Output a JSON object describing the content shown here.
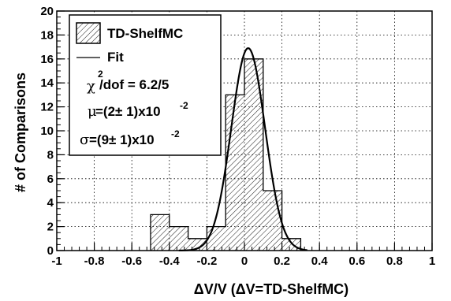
{
  "chart_data": {
    "type": "bar",
    "xlabel": "ΔV/V (ΔV=TD-ShelfMC)",
    "ylabel": "# of Comparisons",
    "xlim": [
      -1,
      1
    ],
    "ylim": [
      0,
      20
    ],
    "grid": true,
    "legend_position": "top-left",
    "bin_width": 0.1,
    "x_ticks": [
      "-1",
      "-0.8",
      "-0.6",
      "-0.4",
      "-0.2",
      "0",
      "0.2",
      "0.4",
      "0.6",
      "0.8",
      "1"
    ],
    "y_ticks": [
      "0",
      "2",
      "4",
      "6",
      "8",
      "10",
      "12",
      "14",
      "16",
      "18",
      "20"
    ],
    "series": [
      {
        "name": "TD-ShelfMC",
        "kind": "histogram",
        "bin_edges": [
          -0.5,
          -0.4,
          -0.3,
          -0.2,
          -0.1,
          0.0,
          0.1,
          0.2,
          0.3
        ],
        "values": [
          3,
          2,
          1,
          2,
          13,
          16,
          5,
          1
        ]
      },
      {
        "name": "Fit",
        "kind": "gaussian",
        "amplitude": 16.9,
        "mean": 0.02,
        "sigma": 0.09
      }
    ],
    "legend": {
      "hist_label": "TD-ShelfMC",
      "fit_label": "Fit",
      "chi_line": {
        "sym": "χ",
        "sup": "2",
        "text": "/dof = 6.2/5"
      },
      "mu_line": {
        "sym": "μ",
        "text": " =(2± 1)x10",
        "sup": "-2"
      },
      "sigma_line": {
        "sym": "σ",
        "text": "=(9± 1)x10",
        "sup": "-2"
      }
    }
  }
}
